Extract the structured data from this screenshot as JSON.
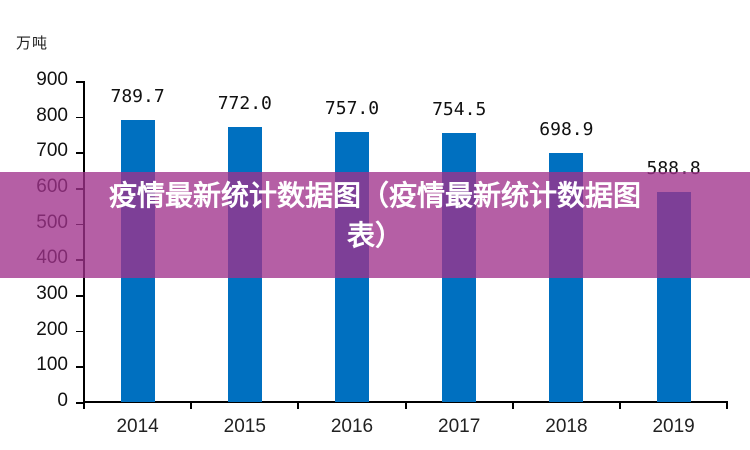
{
  "unit_label": "万吨",
  "overlay_title": "疫情最新统计数据图（疫情最新统计数据图表）",
  "overlay_title_lines": [
    "疫情最新统计数据图（疫情最新统计数据图",
    "表）"
  ],
  "colors": {
    "bar": "#0070c0",
    "overlay": "#a0328c"
  },
  "y_ticks": [
    "900",
    "800",
    "700",
    "600",
    "500",
    "400",
    "300",
    "200",
    "100",
    "0"
  ],
  "bars": [
    {
      "year": "2014",
      "value": 789.7,
      "label": "789.7"
    },
    {
      "year": "2015",
      "value": 772.0,
      "label": "772.0"
    },
    {
      "year": "2016",
      "value": 757.0,
      "label": "757.0"
    },
    {
      "year": "2017",
      "value": 754.5,
      "label": "754.5"
    },
    {
      "year": "2018",
      "value": 698.9,
      "label": "698.9"
    },
    {
      "year": "2019",
      "value": 588.8,
      "label": "588.8"
    }
  ],
  "chart_data": {
    "type": "bar",
    "title": "疫情最新统计数据图（疫情最新统计数据图表）",
    "categories": [
      "2014",
      "2015",
      "2016",
      "2017",
      "2018",
      "2019"
    ],
    "values": [
      789.7,
      772.0,
      757.0,
      754.5,
      698.9,
      588.8
    ],
    "xlabel": "",
    "ylabel": "万吨",
    "ylim": [
      0,
      900
    ],
    "yticks": [
      0,
      100,
      200,
      300,
      400,
      500,
      600,
      700,
      800,
      900
    ],
    "grid": false,
    "legend": null,
    "data_labels": true
  }
}
